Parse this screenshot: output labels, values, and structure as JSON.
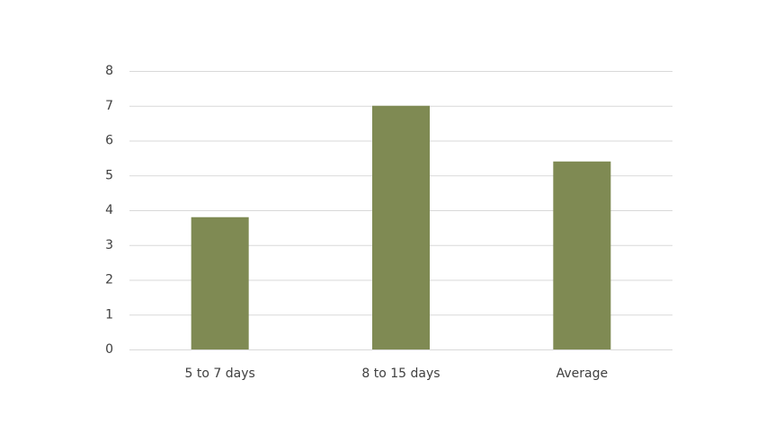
{
  "chart_data": {
    "type": "bar",
    "categories": [
      "5 to 7 days",
      "8 to 15 days",
      "Average"
    ],
    "values": [
      3.8,
      7.0,
      5.4
    ],
    "color": "#7f8a53",
    "ylim": [
      0,
      8
    ],
    "yticks": [
      0,
      1,
      2,
      3,
      4,
      5,
      6,
      7,
      8
    ],
    "grid": true
  }
}
